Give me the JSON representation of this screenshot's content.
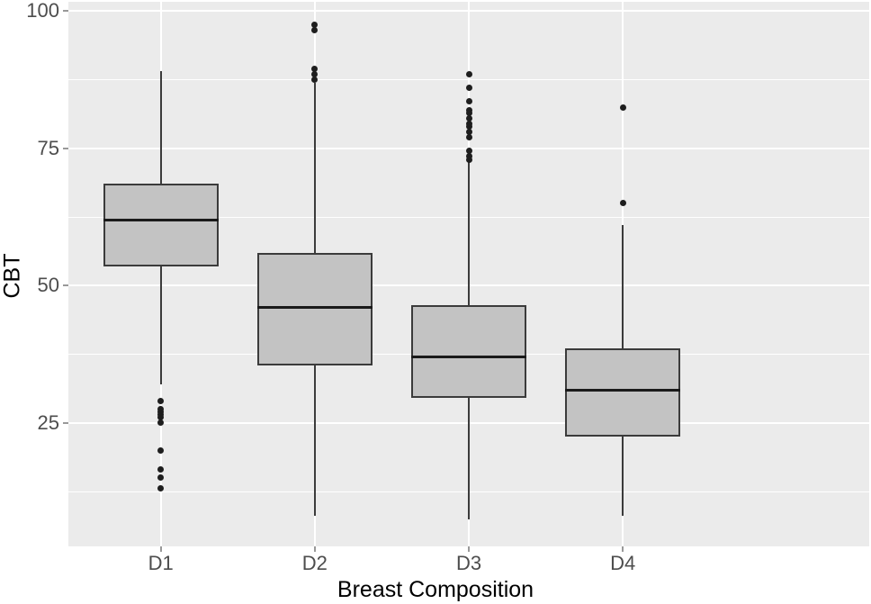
{
  "chart_data": {
    "type": "boxplot",
    "title": "",
    "xlabel": "Breast Composition",
    "ylabel": "CBT",
    "categories": [
      "D1",
      "D2",
      "D3",
      "D4"
    ],
    "ylim": [
      2.5,
      101.7
    ],
    "yticks_major": [
      25,
      50,
      75,
      100
    ],
    "ytick_labels": [
      "25",
      "50",
      "75",
      "100"
    ],
    "yticks_minor": [
      12.5,
      37.5,
      62.5,
      87.5
    ],
    "grid": "white major and minor horizontal gridlines, white vertical gridline per category, on gray panel",
    "legend": "none",
    "series": [
      {
        "category": "D1",
        "whisker_low": 32,
        "q1": 53.5,
        "median": 62,
        "q3": 68.5,
        "whisker_high": 89,
        "outliers": [
          29,
          27.5,
          27,
          26.5,
          26,
          25,
          20,
          16.5,
          15,
          13
        ]
      },
      {
        "category": "D2",
        "whisker_low": 8,
        "q1": 35.5,
        "median": 46,
        "q3": 56,
        "whisker_high": 87,
        "outliers": [
          97.5,
          96.5,
          89.5,
          88.5,
          87.5
        ]
      },
      {
        "category": "D3",
        "whisker_low": 7.5,
        "q1": 29.5,
        "median": 37,
        "q3": 46.5,
        "whisker_high": 72.5,
        "outliers": [
          88.5,
          86,
          83.5,
          82,
          81.5,
          80.5,
          79.5,
          79,
          78,
          77,
          74.5,
          73.5,
          73
        ]
      },
      {
        "category": "D4",
        "whisker_low": 8,
        "q1": 22.5,
        "median": 31,
        "q3": 38.5,
        "whisker_high": 61,
        "outliers": [
          82.5,
          65
        ]
      }
    ],
    "colors": {
      "panel_bg": "#EBEBEB",
      "gridline": "#FFFFFF",
      "box_fill": "#C3C3C3",
      "box_border": "#3B3B3B",
      "median_line": "#1A1A1A",
      "whisker": "#3B3B3B",
      "outlier": "#1E1E1E",
      "tick_mark": "#999999",
      "tick_label": "#4D4D4D",
      "axis_title": "#000000"
    }
  }
}
